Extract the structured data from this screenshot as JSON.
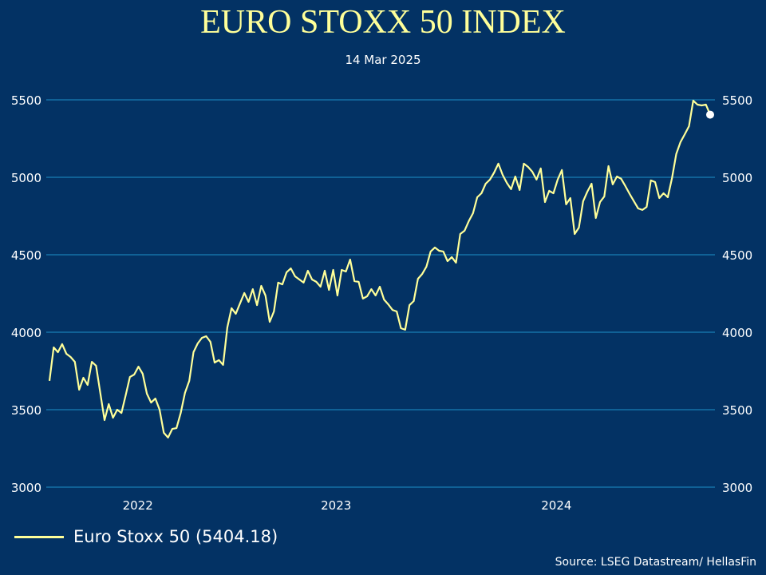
{
  "chart_data": {
    "type": "line",
    "title": "EURO STOXX 50 INDEX",
    "subtitle": "14 Mar 2025",
    "x_range": [
      "2022-03-14",
      "2025-03-14"
    ],
    "x_frequency": "weekly",
    "x_tick_labels": [
      "2022",
      "2023",
      "2024"
    ],
    "ylim": [
      3000,
      5500
    ],
    "y_ticks": [
      3000,
      3500,
      4000,
      4500,
      5000,
      5500
    ],
    "y_axes": "left-and-right",
    "grid": "horizontal",
    "legend_placement": "bottom-left",
    "colors": {
      "background": "#033264",
      "line": "#FFFF99",
      "grid": "#1E90C8",
      "title": "#FFFF99",
      "end_marker": "#FFFFFF"
    },
    "series": [
      {
        "name": "Euro Stoxx 50 (5404.18)",
        "last_value": 5404.18,
        "values": [
          3686,
          3902,
          3871,
          3923,
          3861,
          3840,
          3809,
          3629,
          3706,
          3660,
          3809,
          3784,
          3608,
          3433,
          3536,
          3448,
          3500,
          3479,
          3593,
          3711,
          3727,
          3778,
          3732,
          3603,
          3546,
          3572,
          3500,
          3351,
          3320,
          3376,
          3381,
          3479,
          3608,
          3686,
          3871,
          3928,
          3964,
          3974,
          3938,
          3804,
          3820,
          3789,
          4031,
          4155,
          4119,
          4186,
          4253,
          4196,
          4278,
          4175,
          4299,
          4237,
          4067,
          4134,
          4320,
          4309,
          4387,
          4412,
          4361,
          4340,
          4320,
          4397,
          4340,
          4325,
          4294,
          4397,
          4273,
          4402,
          4237,
          4402,
          4392,
          4469,
          4330,
          4325,
          4217,
          4232,
          4278,
          4237,
          4294,
          4211,
          4180,
          4144,
          4134,
          4026,
          4016,
          4175,
          4201,
          4345,
          4376,
          4423,
          4521,
          4547,
          4526,
          4521,
          4459,
          4485,
          4449,
          4634,
          4655,
          4717,
          4768,
          4871,
          4897,
          4959,
          4985,
          5031,
          5088,
          5016,
          4964,
          4923,
          5005,
          4918,
          5088,
          5067,
          5036,
          4985,
          5057,
          4840,
          4913,
          4897,
          4985,
          5047,
          4825,
          4866,
          4634,
          4675,
          4845,
          4907,
          4959,
          4737,
          4840,
          4876,
          5072,
          4954,
          5005,
          4990,
          4943,
          4892,
          4845,
          4799,
          4789,
          4809,
          4980,
          4969,
          4866,
          4897,
          4871,
          4995,
          5150,
          5227,
          5278,
          5330,
          5495,
          5469,
          5464,
          5469,
          5404.18
        ]
      }
    ],
    "source": "Source: LSEG Datastream/ HellasFin"
  }
}
